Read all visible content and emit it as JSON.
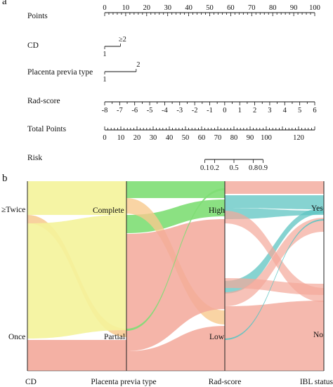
{
  "panels": {
    "a": "a",
    "b": "b"
  },
  "chart_data": [
    {
      "type": "nomogram",
      "panel": "a",
      "rows": [
        {
          "label": "Points",
          "ticks": [
            {
              "value": 0,
              "label": "0"
            },
            {
              "value": 10,
              "label": "10"
            },
            {
              "value": 20,
              "label": "20"
            },
            {
              "value": 30,
              "label": "30"
            },
            {
              "value": 40,
              "label": "40"
            },
            {
              "value": 50,
              "label": "50"
            },
            {
              "value": 60,
              "label": "60"
            },
            {
              "value": 70,
              "label": "70"
            },
            {
              "value": 80,
              "label": "80"
            },
            {
              "value": 90,
              "label": "90"
            },
            {
              "value": 100,
              "label": "100"
            }
          ],
          "points_range": [
            0,
            100
          ]
        },
        {
          "label": "CD",
          "categories": [
            {
              "label": "1",
              "points": 0
            },
            {
              "label": "≥2",
              "points": 7.5
            }
          ]
        },
        {
          "label": "Placenta previa type",
          "categories": [
            {
              "label": "1",
              "points": 0
            },
            {
              "label": "2",
              "points": 15
            }
          ]
        },
        {
          "label": "Rad-score",
          "ticks": [
            {
              "value": -8,
              "label": "-8",
              "points": 0
            },
            {
              "value": -7,
              "label": "-7",
              "points": 7.14
            },
            {
              "value": -6,
              "label": "-6",
              "points": 14.29
            },
            {
              "value": -5,
              "label": "-5",
              "points": 21.43
            },
            {
              "value": -4,
              "label": "-4",
              "points": 28.57
            },
            {
              "value": -3,
              "label": "-3",
              "points": 35.71
            },
            {
              "value": -2,
              "label": "-2",
              "points": 42.86
            },
            {
              "value": -1,
              "label": "-1",
              "points": 50
            },
            {
              "value": 0,
              "label": "0",
              "points": 57.14
            },
            {
              "value": 1,
              "label": "1",
              "points": 64.29
            },
            {
              "value": 2,
              "label": "2",
              "points": 71.43
            },
            {
              "value": 3,
              "label": "3",
              "points": 78.57
            },
            {
              "value": 4,
              "label": "4",
              "points": 85.71
            },
            {
              "value": 5,
              "label": "5",
              "points": 92.86
            },
            {
              "value": 6,
              "label": "6",
              "points": 100
            }
          ]
        },
        {
          "label": "Total Points",
          "ticks": [
            {
              "value": 0,
              "label": "0"
            },
            {
              "value": 10,
              "label": "10"
            },
            {
              "value": 20,
              "label": "20"
            },
            {
              "value": 30,
              "label": "30"
            },
            {
              "value": 40,
              "label": "40"
            },
            {
              "value": 50,
              "label": "50"
            },
            {
              "value": 60,
              "label": "60"
            },
            {
              "value": 70,
              "label": "70"
            },
            {
              "value": 80,
              "label": "80"
            },
            {
              "value": 90,
              "label": "90"
            },
            {
              "value": 100,
              "label": "100"
            },
            {
              "value": 120,
              "label": "120"
            }
          ],
          "range": [
            0,
            130
          ],
          "minor_step": 2
        },
        {
          "label": "Risk",
          "ticks": [
            {
              "value": 0.1,
              "label": "0.1",
              "total_points": 62
            },
            {
              "value": 0.2,
              "label": "0.2",
              "total_points": 68
            },
            {
              "value": 0.5,
              "label": "0.5",
              "total_points": 80
            },
            {
              "value": 0.8,
              "label": "0.8",
              "total_points": 92
            },
            {
              "value": 0.9,
              "label": "0.9",
              "total_points": 98
            }
          ]
        }
      ]
    },
    {
      "type": "alluvial",
      "panel": "b",
      "axes": [
        "CD",
        "Placenta previa type",
        "Rad-score",
        "IBL status"
      ],
      "strata": {
        "CD": [
          {
            "label": "≥Twice",
            "share": 0.17
          },
          {
            "label": "Once",
            "share": 0.83
          }
        ],
        "Placenta previa type": [
          {
            "label": "Complete",
            "share": 0.2
          },
          {
            "label": "Partial",
            "share": 0.8
          }
        ],
        "Rad-score": [
          {
            "label": "High",
            "share": 0.2
          },
          {
            "label": "Low",
            "share": 0.8
          }
        ],
        "IBL status": [
          {
            "label": "Yes",
            "share": 0.3
          },
          {
            "label": "No",
            "share": 0.7
          }
        ]
      },
      "flows": [
        {
          "from": "≥Twice",
          "to": "Complete",
          "size": 0.13,
          "color": "#d4f07a"
        },
        {
          "from": "≥Twice",
          "to": "Partial",
          "size": 0.04,
          "color": "#f6d49a"
        },
        {
          "from": "Once",
          "to": "Complete",
          "size": 0.08,
          "color": "#f0ec8e"
        },
        {
          "from": "Once",
          "to": "Partial",
          "size": 0.75,
          "color": "#f3b1a4"
        },
        {
          "from": "Complete",
          "to": "High",
          "size": 0.13,
          "color": "#8ddf80"
        },
        {
          "from": "Complete",
          "to": "Low",
          "size": 0.07,
          "color": "#f6cba0"
        },
        {
          "from": "Partial",
          "to": "High",
          "size": 0.07,
          "color": "#f6cba0"
        },
        {
          "from": "Partial",
          "to": "Low",
          "size": 0.73,
          "color": "#f3b1a4"
        },
        {
          "from": "High",
          "to": "Yes",
          "size": 0.1,
          "color": "#8fd6d4"
        },
        {
          "from": "High",
          "to": "No",
          "size": 0.1,
          "color": "#f4b5b5"
        },
        {
          "from": "Low",
          "to": "Yes",
          "size": 0.2,
          "color": "#f4b5b5"
        },
        {
          "from": "Low",
          "to": "No",
          "size": 0.6,
          "color": "#f3b1a4"
        }
      ],
      "colors": {
        "yellow": "#f4f39a",
        "green": "#7ede74",
        "salmon": "#f3a89a",
        "teal": "#5ec4c2",
        "orange": "#f7c98d"
      }
    }
  ]
}
